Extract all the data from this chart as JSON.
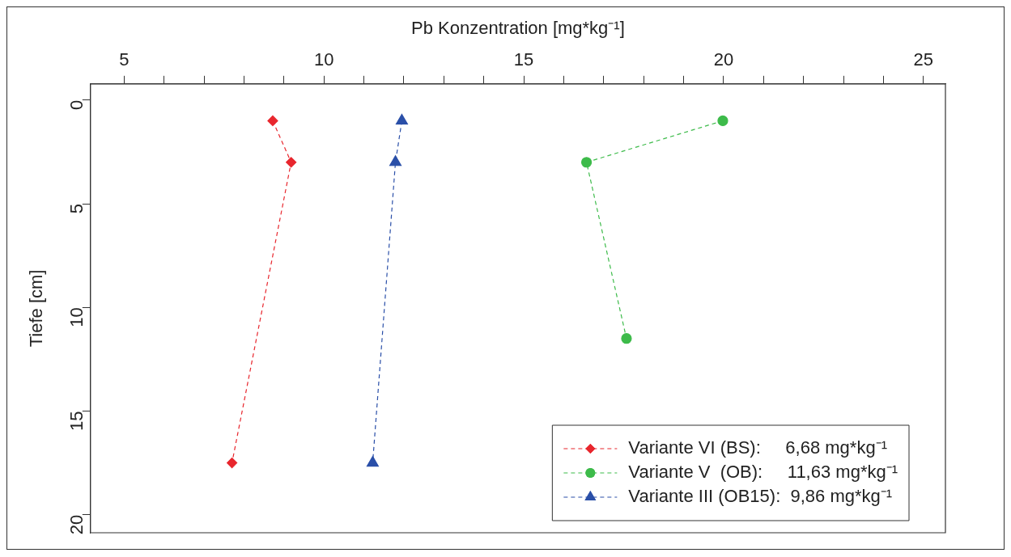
{
  "chart_data": {
    "type": "line",
    "xlabel": "Pb Konzentration [mg*kg⁻¹]",
    "ylabel": "Tiefe [cm]",
    "xlim": [
      4.16,
      25.55
    ],
    "ylim": [
      20.87,
      -0.78
    ],
    "xticks": [
      5,
      {
        "value": 6,
        "label": null
      },
      {
        "value": 7,
        "label": null
      },
      {
        "value": 8,
        "label": null
      },
      {
        "value": 9,
        "label": null
      },
      10,
      {
        "value": 11,
        "label": null
      },
      {
        "value": 12,
        "label": null
      },
      {
        "value": 13,
        "label": null
      },
      {
        "value": 14,
        "label": null
      },
      15,
      {
        "value": 16,
        "label": null
      },
      {
        "value": 17,
        "label": null
      },
      {
        "value": 18,
        "label": null
      },
      {
        "value": 19,
        "label": null
      },
      20,
      {
        "value": 21,
        "label": null
      },
      {
        "value": 22,
        "label": null
      },
      {
        "value": 23,
        "label": null
      },
      {
        "value": 24,
        "label": null
      },
      25
    ],
    "yticks": [
      0,
      5,
      10,
      15,
      20
    ],
    "grid": false,
    "legend": "bottom right",
    "line_style": "dashed",
    "series": [
      {
        "name": "Variante VI (BS):     6,68 mg*kg⁻¹",
        "color": "#e8262d",
        "marker": "diamond",
        "x": [
          8.72,
          9.18,
          7.7
        ],
        "values": [
          1,
          3,
          17.5
        ]
      },
      {
        "name": "Variante V  (OB):     11,63 mg*kg⁻¹",
        "color": "#3dbb4a",
        "marker": "circle",
        "x": [
          19.98,
          16.57,
          17.57
        ],
        "values": [
          1,
          3,
          11.5
        ]
      },
      {
        "name": "Variante III (OB15):  9,86 mg*kg⁻¹",
        "color": "#2a4fa8",
        "marker": "triangle",
        "x": [
          11.95,
          11.79,
          11.22
        ],
        "values": [
          1,
          3,
          17.5
        ]
      }
    ]
  }
}
